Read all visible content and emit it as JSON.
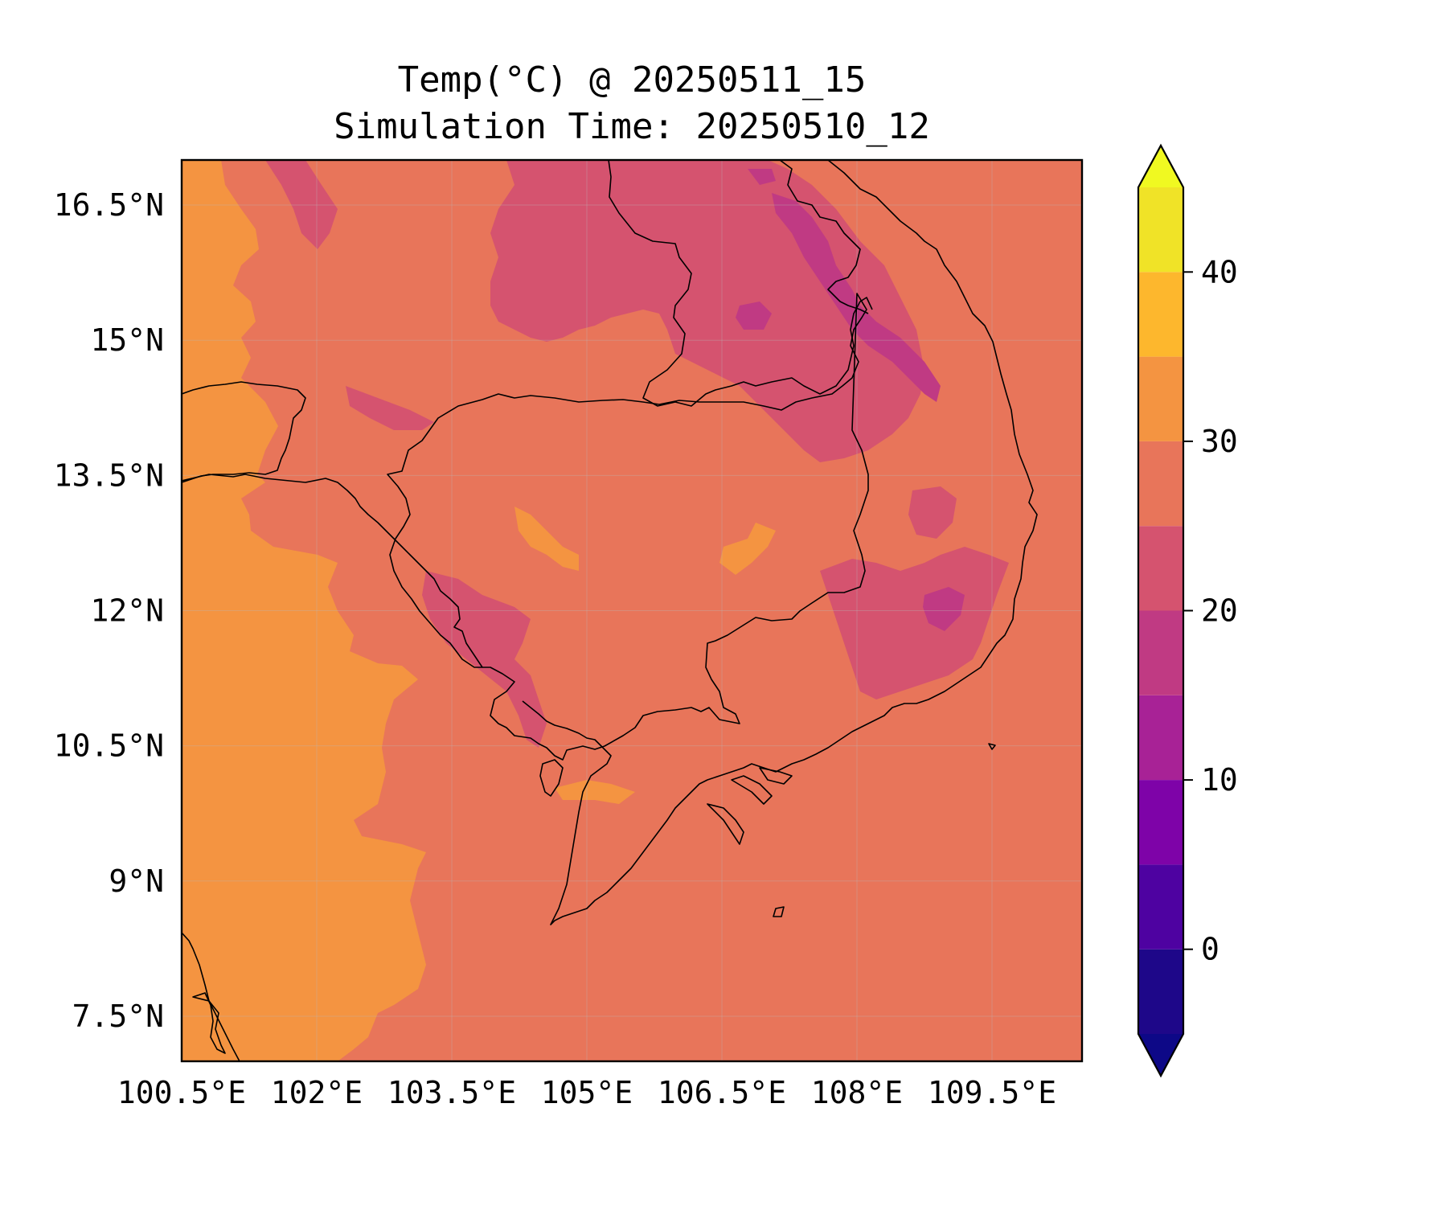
{
  "title": {
    "line1": "Temp(°C) @ 20250511_15",
    "line2": "Simulation Time: 20250510_12"
  },
  "map": {
    "lon_range": [
      100.5,
      110.5
    ],
    "lat_range": [
      7.0,
      17.0
    ],
    "base_fill": "#e8755a",
    "x_ticks": [
      {
        "value": 100.5,
        "label": "100.5°E"
      },
      {
        "value": 102.0,
        "label": "102°E"
      },
      {
        "value": 103.5,
        "label": "103.5°E"
      },
      {
        "value": 105.0,
        "label": "105°E"
      },
      {
        "value": 106.5,
        "label": "106.5°E"
      },
      {
        "value": 108.0,
        "label": "108°E"
      },
      {
        "value": 109.5,
        "label": "109.5°E"
      }
    ],
    "y_ticks": [
      {
        "value": 16.5,
        "label": "16.5°N"
      },
      {
        "value": 15.0,
        "label": "15°N"
      },
      {
        "value": 13.5,
        "label": "13.5°N"
      },
      {
        "value": 12.0,
        "label": "12°N"
      },
      {
        "value": 10.5,
        "label": "10.5°N"
      },
      {
        "value": 9.0,
        "label": "9°N"
      },
      {
        "value": 7.5,
        "label": "7.5°N"
      }
    ],
    "gridlines": true
  },
  "colorbar": {
    "range": [
      -5,
      45
    ],
    "extend": "both",
    "levels": [
      {
        "from": -5,
        "to": 0,
        "color": "#1e0789"
      },
      {
        "from": 0,
        "to": 5,
        "color": "#4e02a1"
      },
      {
        "from": 5,
        "to": 10,
        "color": "#7e03a8"
      },
      {
        "from": 10,
        "to": 15,
        "color": "#a82296"
      },
      {
        "from": 15,
        "to": 20,
        "color": "#c03a83"
      },
      {
        "from": 20,
        "to": 25,
        "color": "#d5536f"
      },
      {
        "from": 25,
        "to": 30,
        "color": "#e8755a"
      },
      {
        "from": 30,
        "to": 35,
        "color": "#f49441"
      },
      {
        "from": 35,
        "to": 40,
        "color": "#fdb72d"
      },
      {
        "from": 40,
        "to": 45,
        "color": "#f0e327"
      }
    ],
    "under_color": "#0d0887",
    "over_color": "#f0f921",
    "ticks": [
      {
        "value": 0,
        "label": "0"
      },
      {
        "value": 10,
        "label": "10"
      },
      {
        "value": 20,
        "label": "20"
      },
      {
        "value": 30,
        "label": "30"
      },
      {
        "value": 40,
        "label": "40"
      }
    ]
  }
}
